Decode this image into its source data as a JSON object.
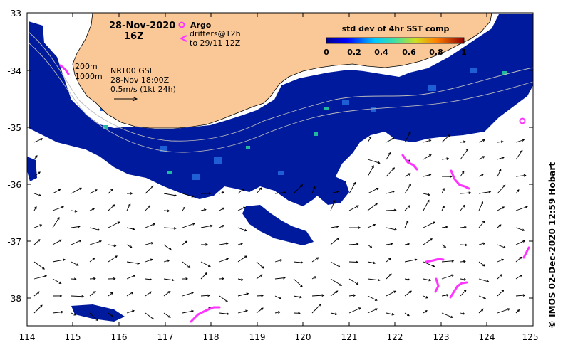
{
  "header": {
    "date": "28-Nov-2020",
    "hour": "16Z"
  },
  "legend": {
    "argo_label": "Argo",
    "drifters_line1": "drifters@12h",
    "drifters_line2": "to 29/11 12Z",
    "argo_color": "#ff33ff",
    "drifter_color": "#ff33ff"
  },
  "contours": {
    "label_200": "200m",
    "label_1000": "1000m"
  },
  "current_info": {
    "line1": "NRT00 GSL",
    "line2": "28-Nov 18:00Z",
    "line3": "0.5m/s (1kt 24h)"
  },
  "colorbar": {
    "title": "std dev of 4hr SST comp",
    "ticks": [
      "0",
      "0.2",
      "0.4",
      "0.6",
      "0.8",
      "1"
    ],
    "min": 0,
    "max": 1
  },
  "axes": {
    "x_ticks": [
      "114",
      "115",
      "116",
      "117",
      "118",
      "119",
      "120",
      "121",
      "122",
      "123",
      "124",
      "125"
    ],
    "y_ticks": [
      "-33",
      "-34",
      "-35",
      "-36",
      "-37",
      "-38"
    ],
    "lon_range": [
      114,
      125
    ],
    "lat_range": [
      -38.5,
      -33
    ]
  },
  "credit": "© IMOS 02-Dec-2020 12:59 Hobart",
  "colors": {
    "land": "#fac896",
    "sea_mask": "#ffffff",
    "sst_low": "#00008c",
    "frame": "#000000"
  }
}
